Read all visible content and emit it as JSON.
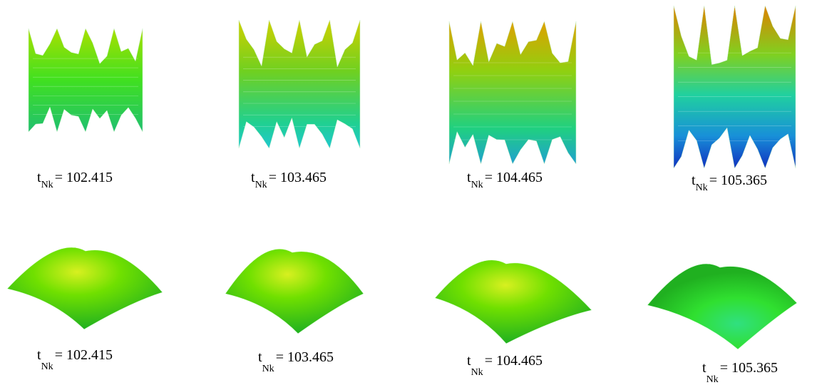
{
  "panels": {
    "top": [
      {
        "var": "t",
        "sub": "Nk",
        "value": "= 102.415"
      },
      {
        "var": "t",
        "sub": "Nk",
        "value": "= 103.465"
      },
      {
        "var": "t",
        "sub": "Nk",
        "value": "= 104.465"
      },
      {
        "var": "t",
        "sub": "Nk",
        "value": "= 105.365"
      }
    ],
    "bottom": [
      {
        "var": "t",
        "sub": "Nk",
        "value": "= 102.415"
      },
      {
        "var": "t",
        "sub": "Nk",
        "value": "= 103.465"
      },
      {
        "var": "t",
        "sub": "Nk",
        "value": "= 104.465"
      },
      {
        "var": "t",
        "sub": "Nk",
        "value": "= 105.365"
      }
    ]
  }
}
